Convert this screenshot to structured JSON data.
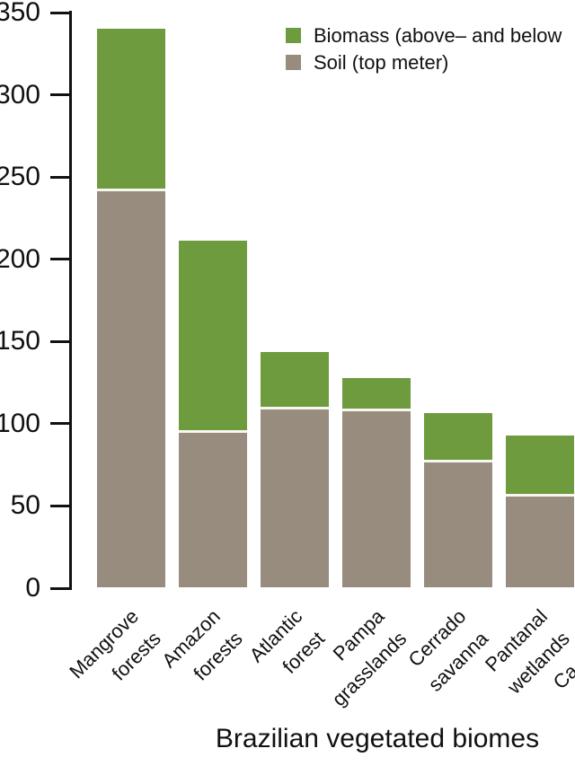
{
  "chart_data": {
    "type": "bar",
    "stacked": true,
    "xlabel": "Brazilian vegetated biomes",
    "ylabel": "",
    "ylim": [
      0,
      350
    ],
    "yticks": [
      0,
      50,
      100,
      150,
      200,
      250,
      300,
      350
    ],
    "grid": false,
    "legend_position": "top-right",
    "categories": [
      "Mangrove forests",
      "Amazon forests",
      "Atlantic forest",
      "Pampa grasslands",
      "Cerrado savanna",
      "Pantanal wetlands"
    ],
    "categories_lines": [
      [
        "Mangrove",
        "forests"
      ],
      [
        "Amazon",
        "forests"
      ],
      [
        "Atlantic",
        "forest"
      ],
      [
        "Pampa",
        "grasslands"
      ],
      [
        "Cerrado",
        "savanna"
      ],
      [
        "Pantanal",
        "wetlands"
      ]
    ],
    "partial_category_visible_text": "Ca",
    "series": [
      {
        "name": "Biomass (above– and below",
        "color": "#6e9b3e",
        "values": [
          99,
          117,
          35,
          20,
          30,
          37
        ]
      },
      {
        "name": "Soil (top meter)",
        "color": "#988c7e",
        "values": [
          241,
          94,
          108,
          107,
          76,
          55
        ]
      }
    ],
    "totals": [
      340,
      211,
      143,
      127,
      106,
      92
    ]
  },
  "colors": {
    "biomass_green": "#6e9b3e",
    "soil_brown": "#988c7e",
    "separator_line": "#f7f7ef",
    "axis": "#111111",
    "background": "#ffffff"
  }
}
